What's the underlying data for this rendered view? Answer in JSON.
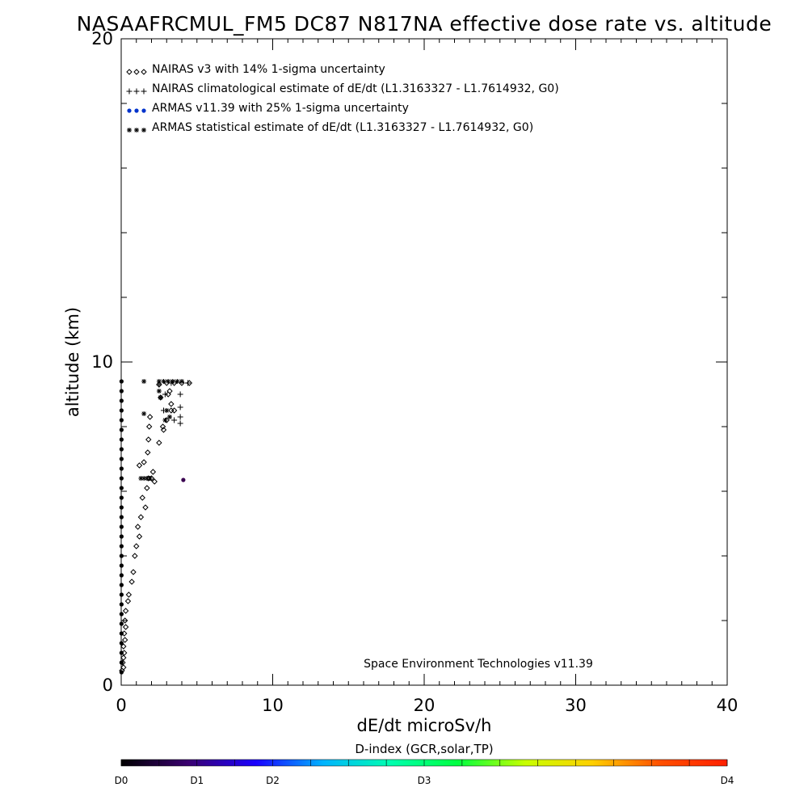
{
  "chart_data": {
    "type": "scatter",
    "title": "NASAAFRCMUL_FM5 DC87 N817NA effective dose rate vs. altitude",
    "xlabel": "dE/dt microSv/h",
    "ylabel": "altitude (km)",
    "xlim": [
      0,
      40
    ],
    "ylim": [
      0,
      20
    ],
    "xticks": [
      "0",
      "10",
      "20",
      "30",
      "40"
    ],
    "yticks": [
      "0",
      "10",
      "20"
    ],
    "credit": "Space Environment Technologies v11.39",
    "legend": {
      "placement": "top-left",
      "entries": [
        {
          "symbol": "◇◇◇",
          "label": "NAIRAS v3 with 14% 1-sigma uncertainty",
          "color": "#000000"
        },
        {
          "symbol": "+++",
          "label": "NAIRAS climatological estimate of dE/dt (L1.3163327 - L1.7614932, G0)",
          "color": "#000000"
        },
        {
          "symbol": "●●●",
          "label": "ARMAS v11.39 with 25% 1-sigma uncertainty",
          "color": "#0033cc"
        },
        {
          "symbol": "***",
          "label": "ARMAS statistical estimate of dE/dt (L1.3163327 - L1.7614932, G0)",
          "color": "#000000"
        }
      ]
    },
    "colorbar": {
      "title": "D-index (GCR,solar,TP)",
      "labels": [
        {
          "text": "D0",
          "frac": 0.0
        },
        {
          "text": "D1",
          "frac": 0.125
        },
        {
          "text": "D2",
          "frac": 0.25
        },
        {
          "text": "D3",
          "frac": 0.5
        },
        {
          "text": "D4",
          "frac": 1.0
        }
      ],
      "colors": [
        "#000000",
        "#3a0070",
        "#1a00ff",
        "#00b4ff",
        "#00ffb0",
        "#00ff40",
        "#c8ff00",
        "#ffd000",
        "#ff5000",
        "#ff2000"
      ]
    },
    "series": [
      {
        "name": "NAIRAS v3 with 14% 1-sigma uncertainty",
        "marker": "diamond",
        "points": [
          [
            0.05,
            0.45
          ],
          [
            0.15,
            0.55
          ],
          [
            0.1,
            0.7
          ],
          [
            0.15,
            0.85
          ],
          [
            0.2,
            1.0
          ],
          [
            0.15,
            1.2
          ],
          [
            0.25,
            1.4
          ],
          [
            0.2,
            1.6
          ],
          [
            0.3,
            1.8
          ],
          [
            0.25,
            2.0
          ],
          [
            0.3,
            2.3
          ],
          [
            0.45,
            2.6
          ],
          [
            0.5,
            2.8
          ],
          [
            0.7,
            3.2
          ],
          [
            0.8,
            3.5
          ],
          [
            0.9,
            4.0
          ],
          [
            1.0,
            4.3
          ],
          [
            1.2,
            4.6
          ],
          [
            1.1,
            4.9
          ],
          [
            1.3,
            5.2
          ],
          [
            1.6,
            5.5
          ],
          [
            1.4,
            5.8
          ],
          [
            1.7,
            6.1
          ],
          [
            1.8,
            6.4
          ],
          [
            2.1,
            6.6
          ],
          [
            1.5,
            6.9
          ],
          [
            1.75,
            7.2
          ],
          [
            1.8,
            7.6
          ],
          [
            1.85,
            8.0
          ],
          [
            1.9,
            8.3
          ],
          [
            2.5,
            7.5
          ],
          [
            2.8,
            7.9
          ],
          [
            2.75,
            8.0
          ],
          [
            3.0,
            8.2
          ],
          [
            3.3,
            8.5
          ],
          [
            3.5,
            8.5
          ],
          [
            3.3,
            8.7
          ],
          [
            2.6,
            8.9
          ],
          [
            3.1,
            9.0
          ],
          [
            3.2,
            9.1
          ],
          [
            2.5,
            9.3
          ],
          [
            3.0,
            9.35
          ],
          [
            3.5,
            9.35
          ],
          [
            4.0,
            9.35
          ],
          [
            4.5,
            9.35
          ],
          [
            2.0,
            6.4
          ],
          [
            2.2,
            6.3
          ],
          [
            1.2,
            6.8
          ]
        ]
      },
      {
        "name": "NAIRAS climatological estimate of dE/dt (L1.3163327 - L1.7614932, G0)",
        "marker": "plus",
        "points": [
          [
            2.8,
            8.5
          ],
          [
            3.5,
            8.2
          ],
          [
            3.9,
            8.1
          ],
          [
            3.9,
            8.3
          ],
          [
            3.9,
            8.6
          ],
          [
            2.9,
            9.0
          ],
          [
            3.9,
            9.0
          ],
          [
            2.5,
            9.3
          ],
          [
            3.3,
            9.35
          ],
          [
            4.4,
            9.35
          ]
        ]
      },
      {
        "name": "ARMAS v11.39 with 25% 1-sigma uncertainty",
        "marker": "dot",
        "points": [
          [
            0.02,
            0.4
          ],
          [
            0.02,
            0.7
          ],
          [
            0.02,
            1.0
          ],
          [
            0.02,
            1.3
          ],
          [
            0.02,
            1.6
          ],
          [
            0.02,
            1.9
          ],
          [
            0.02,
            2.2
          ],
          [
            0.02,
            2.5
          ],
          [
            0.02,
            2.8
          ],
          [
            0.02,
            3.1
          ],
          [
            0.02,
            3.4
          ],
          [
            0.02,
            3.7
          ],
          [
            0.02,
            4.0
          ],
          [
            0.02,
            4.3
          ],
          [
            0.02,
            4.6
          ],
          [
            0.02,
            4.9
          ],
          [
            0.02,
            5.2
          ],
          [
            0.02,
            5.5
          ],
          [
            0.02,
            5.8
          ],
          [
            0.02,
            6.1
          ],
          [
            0.02,
            6.4
          ],
          [
            0.02,
            6.7
          ],
          [
            0.02,
            7.0
          ],
          [
            0.02,
            7.3
          ],
          [
            0.02,
            7.6
          ],
          [
            0.02,
            7.9
          ],
          [
            0.02,
            8.2
          ],
          [
            0.02,
            8.5
          ],
          [
            0.02,
            8.8
          ],
          [
            0.02,
            9.1
          ],
          [
            0.02,
            9.4
          ],
          [
            4.1,
            6.35
          ]
        ]
      },
      {
        "name": "ARMAS statistical estimate of dE/dt (L1.3163327 - L1.7614932, G0)",
        "marker": "asterisk",
        "points": [
          [
            1.5,
            9.4
          ],
          [
            1.5,
            8.4
          ],
          [
            1.3,
            6.4
          ],
          [
            1.5,
            6.4
          ],
          [
            1.7,
            6.4
          ],
          [
            1.9,
            6.4
          ],
          [
            2.5,
            9.1
          ],
          [
            2.6,
            8.9
          ],
          [
            3.0,
            8.5
          ],
          [
            3.2,
            8.3
          ],
          [
            2.9,
            8.2
          ],
          [
            2.5,
            9.4
          ],
          [
            2.8,
            9.4
          ],
          [
            3.1,
            9.4
          ],
          [
            3.4,
            9.4
          ],
          [
            3.7,
            9.4
          ],
          [
            4.0,
            9.4
          ]
        ]
      }
    ]
  }
}
